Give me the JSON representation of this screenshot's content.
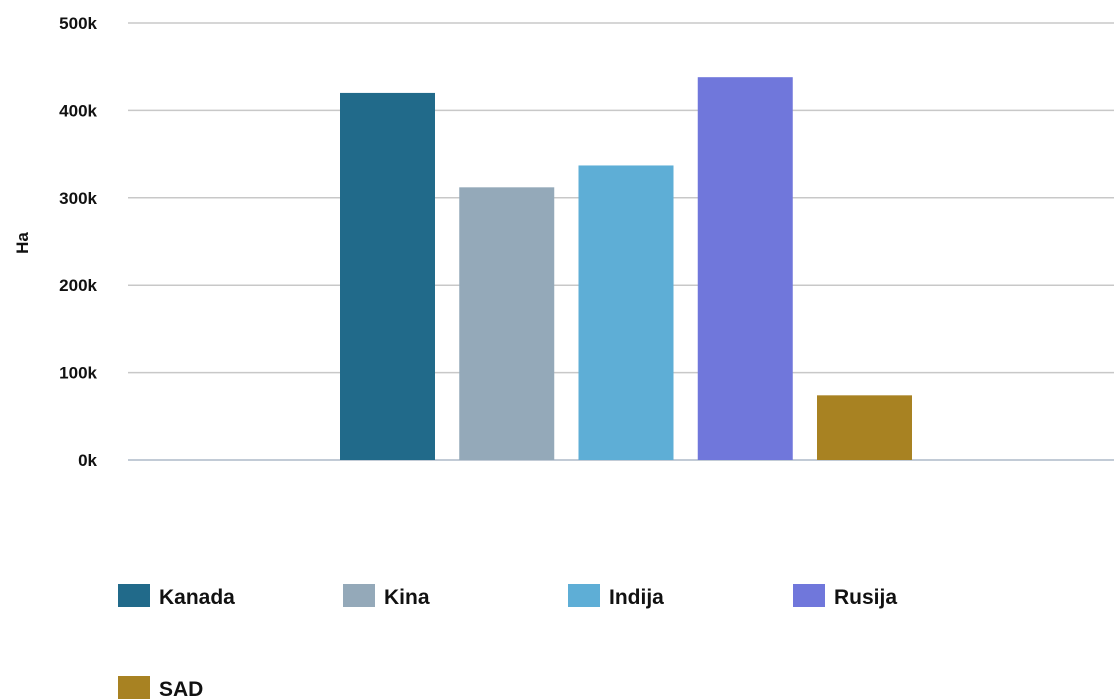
{
  "chart_data": {
    "type": "bar",
    "title": "",
    "xlabel": "",
    "ylabel": "Ha",
    "ylim": [
      0,
      500000
    ],
    "yticks": [
      0,
      100000,
      200000,
      300000,
      400000,
      500000
    ],
    "ytick_labels": [
      "0k",
      "100k",
      "200k",
      "300k",
      "400k",
      "500k"
    ],
    "grid": true,
    "legend_position": "bottom",
    "series": [
      {
        "name": "Kanada",
        "value": 420000,
        "color": "#216a8a"
      },
      {
        "name": "Kina",
        "value": 312000,
        "color": "#94a9b9"
      },
      {
        "name": "Indija",
        "value": 337000,
        "color": "#5eaed6"
      },
      {
        "name": "Rusija",
        "value": 438000,
        "color": "#7077db"
      },
      {
        "name": "SAD",
        "value": 74000,
        "color": "#a88222"
      }
    ]
  }
}
